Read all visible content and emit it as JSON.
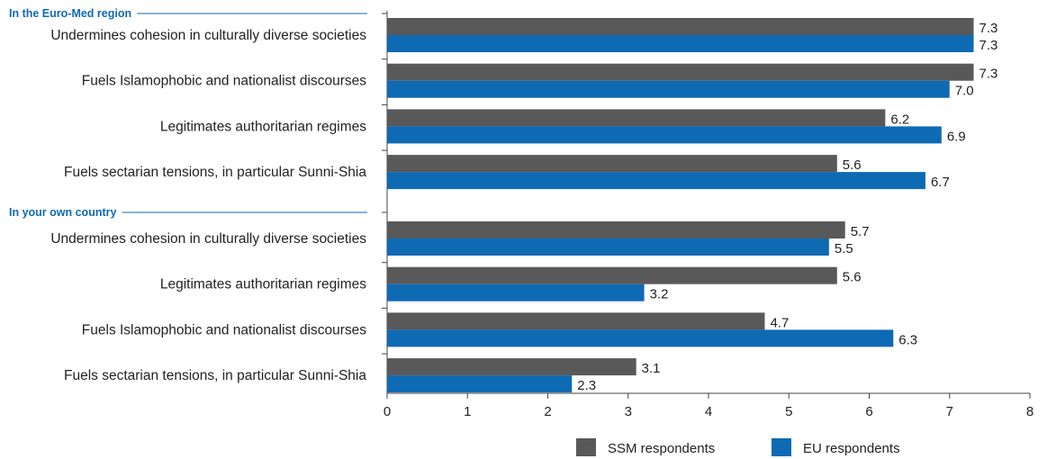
{
  "chart_data": {
    "type": "bar",
    "orientation": "horizontal",
    "xlim": [
      0,
      8
    ],
    "ticks": [
      "0",
      "1",
      "2",
      "3",
      "4",
      "5",
      "6",
      "7",
      "8"
    ],
    "legend_position": "bottom",
    "colors": {
      "SSM respondents": "#595959",
      "EU respondents": "#0f6ab4",
      "group_title": "#0f6ab4",
      "axis": "#444444"
    },
    "groups": [
      {
        "title": "In the Euro-Med region",
        "categories": [
          "Undermines cohesion in culturally diverse societies",
          "Fuels Islamophobic and nationalist discourses",
          "Legitimates authoritarian regimes",
          "Fuels sectarian tensions, in particular Sunni-Shia"
        ],
        "series": [
          {
            "name": "SSM respondents",
            "values": [
              7.3,
              7.3,
              6.2,
              5.6
            ],
            "labels": [
              "7.3",
              "7.3",
              "6.2",
              "5.6"
            ]
          },
          {
            "name": "EU respondents",
            "values": [
              7.3,
              7.0,
              6.9,
              6.7
            ],
            "labels": [
              "7.3",
              "7.0",
              "6.9",
              "6.7"
            ]
          }
        ]
      },
      {
        "title": "In your own country",
        "categories": [
          "Undermines cohesion in culturally diverse societies",
          "Legitimates authoritarian regimes",
          "Fuels Islamophobic and nationalist discourses",
          "Fuels sectarian tensions, in particular Sunni-Shia"
        ],
        "series": [
          {
            "name": "SSM respondents",
            "values": [
              5.7,
              5.6,
              4.7,
              3.1
            ],
            "labels": [
              "5.7",
              "5.6",
              "4.7",
              "3.1"
            ]
          },
          {
            "name": "EU respondents",
            "values": [
              5.5,
              3.2,
              6.3,
              2.3
            ],
            "labels": [
              "5.5",
              "3.2",
              "6.3",
              "2.3"
            ]
          }
        ]
      }
    ],
    "legend": [
      "SSM respondents",
      "EU respondents"
    ]
  }
}
